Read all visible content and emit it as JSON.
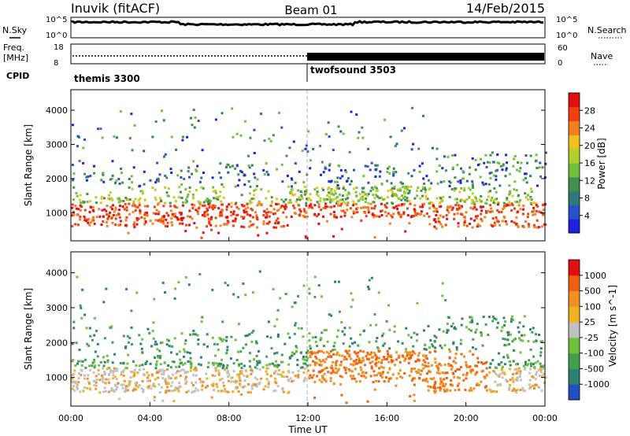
{
  "header": {
    "station": "Inuvik (fitACF)",
    "beam": "Beam 01",
    "date": "14/Feb/2015"
  },
  "params": {
    "nsky_label": "N.Sky",
    "nsearch_label": "N.Search",
    "freq_label_1": "Freq.",
    "freq_label_2": "[MHz]",
    "nave_label": "Nave",
    "cpid_label": "CPID",
    "left_ticks_top": [
      "10^5",
      "10^0"
    ],
    "right_ticks_top": [
      "10^5",
      "10^0"
    ],
    "freq_ticks": [
      "18",
      "8"
    ],
    "nave_ticks": [
      "60",
      "0"
    ],
    "cpid_segments": [
      {
        "name": "themis 3300",
        "start_hr": 0,
        "end_hr": 12
      },
      {
        "name": "twofsound 3503",
        "start_hr": 12,
        "end_hr": 24
      }
    ]
  },
  "colors": {
    "power": [
      "#2020e0",
      "#2a50c8",
      "#2e7a78",
      "#409050",
      "#70c040",
      "#b0d030",
      "#f0c020",
      "#f08020",
      "#f04010",
      "#e01010"
    ],
    "velocity": [
      "#2050c0",
      "#2e8070",
      "#40a050",
      "#70c040",
      "#c0c0c0",
      "#f0b020",
      "#f09020",
      "#f06010",
      "#e01010"
    ]
  },
  "chart_data": [
    {
      "type": "heatmap",
      "title": "Power",
      "ylabel": "Slant Range [km]",
      "yticks": [
        "1000",
        "2000",
        "3000",
        "4000"
      ],
      "ylim": [
        180,
        4600
      ],
      "xlim": [
        0,
        24
      ],
      "colorbar_label": "Power [dB]",
      "colorbar_ticks": [
        "4",
        "8",
        "12",
        "16",
        "20",
        "24",
        "28"
      ],
      "clim": [
        0,
        32
      ],
      "mid_marker_hr": 12
    },
    {
      "type": "heatmap",
      "title": "Velocity",
      "ylabel": "Slant Range [km]",
      "yticks": [
        "1000",
        "2000",
        "3000",
        "4000"
      ],
      "ylim": [
        180,
        4600
      ],
      "xlim": [
        0,
        24
      ],
      "xlabel": "Time UT",
      "xticks": [
        "00:00",
        "04:00",
        "08:00",
        "12:00",
        "16:00",
        "20:00",
        "00:00"
      ],
      "colorbar_label": "Velocity [m s^-1]",
      "colorbar_ticks": [
        "1000",
        "500",
        "100",
        "25",
        "-25",
        "-100",
        "-500",
        "-1000"
      ],
      "mid_marker_hr": 12
    }
  ]
}
